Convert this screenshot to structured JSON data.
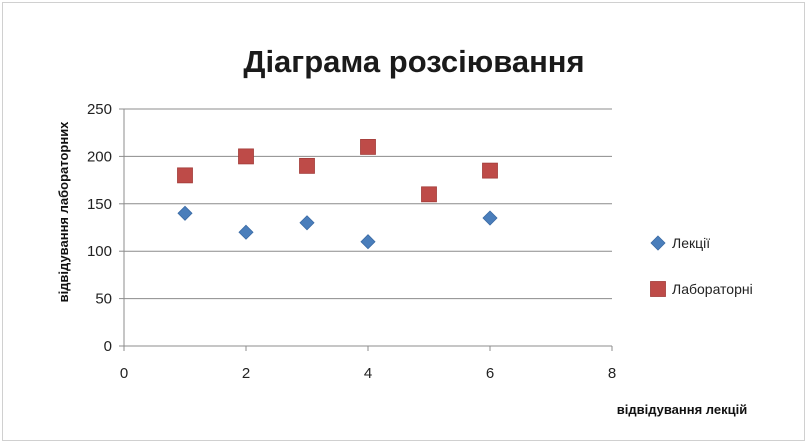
{
  "chart_data": {
    "type": "scatter",
    "title": "Діаграма розсіювання",
    "xlabel": "відвідування лекцій",
    "ylabel": "відвідування лабораторних",
    "xlim": [
      0,
      8
    ],
    "ylim": [
      0,
      250
    ],
    "x_ticks": [
      0,
      2,
      4,
      6,
      8
    ],
    "y_ticks": [
      0,
      50,
      100,
      150,
      200,
      250
    ],
    "grid": "horizontal",
    "legend_position": "right",
    "series": [
      {
        "name": "Лекції",
        "marker": "diamond",
        "color": "#4a7ebb",
        "points": [
          {
            "x": 1,
            "y": 140
          },
          {
            "x": 2,
            "y": 120
          },
          {
            "x": 3,
            "y": 130
          },
          {
            "x": 4,
            "y": 110
          },
          {
            "x": 6,
            "y": 135
          }
        ]
      },
      {
        "name": "Лабораторні",
        "marker": "square",
        "color": "#be4b48",
        "points": [
          {
            "x": 1,
            "y": 180
          },
          {
            "x": 2,
            "y": 200
          },
          {
            "x": 3,
            "y": 190
          },
          {
            "x": 4,
            "y": 210
          },
          {
            "x": 5,
            "y": 160
          },
          {
            "x": 6,
            "y": 185
          }
        ]
      }
    ]
  }
}
